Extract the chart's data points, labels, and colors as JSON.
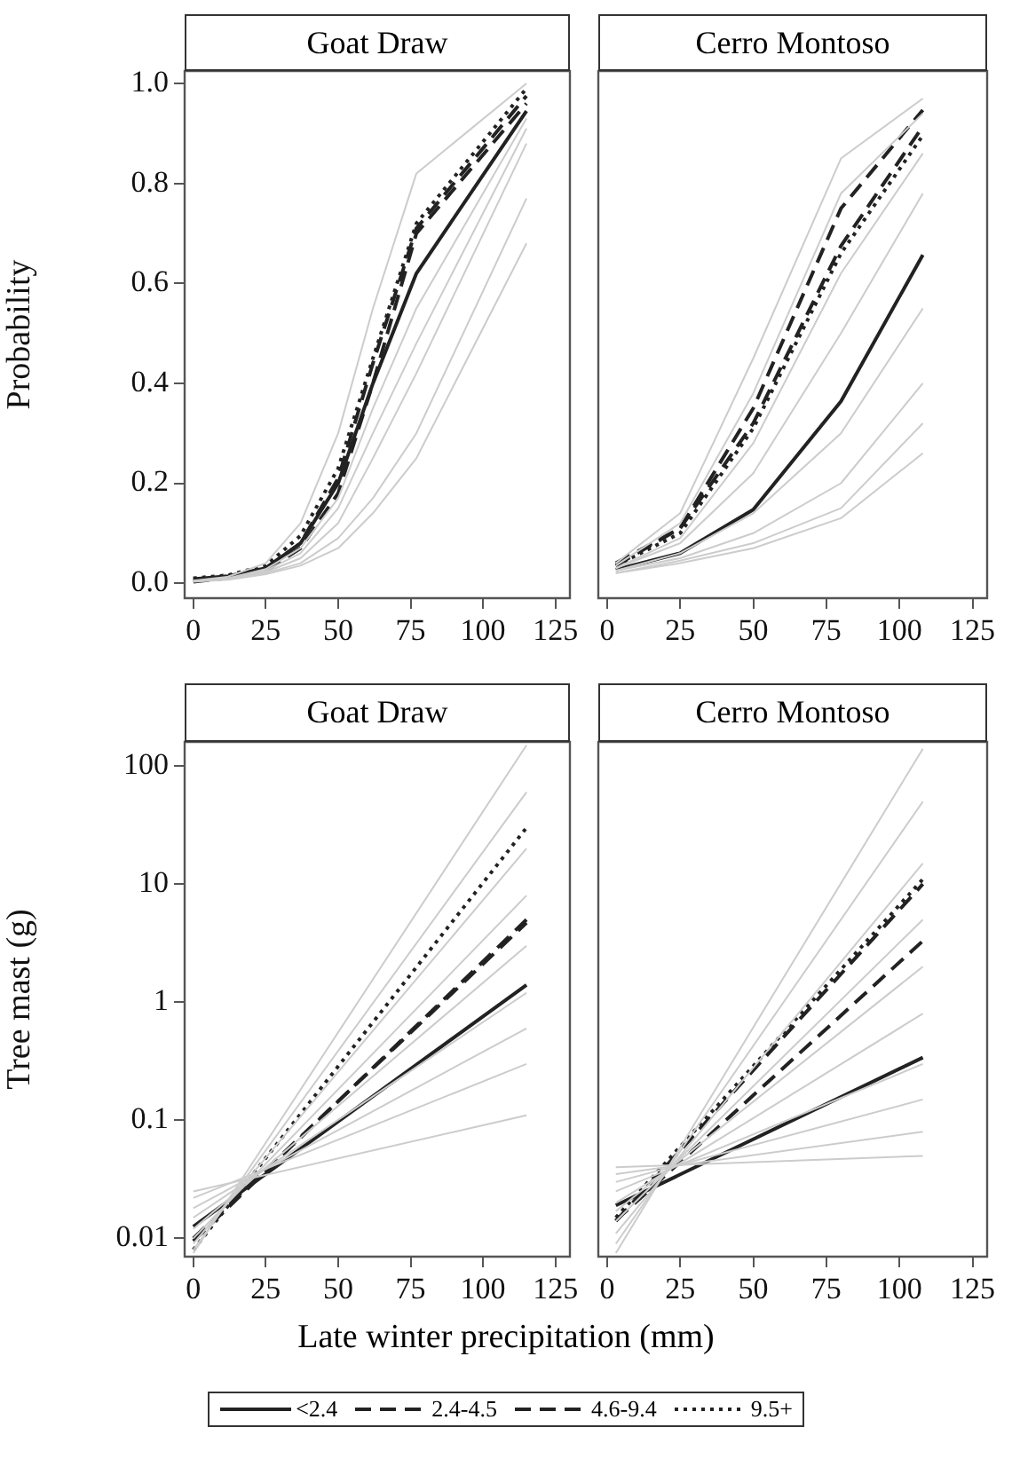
{
  "chart_data": [
    {
      "type": "line",
      "title": "Goat Draw",
      "ylabel": "Probability",
      "x": [
        0,
        12,
        25,
        37,
        50,
        62,
        77,
        115
      ],
      "xlim": [
        -3,
        130
      ],
      "xticks": [
        0,
        25,
        50,
        75,
        100,
        125
      ],
      "ylim": [
        -0.03,
        1.025
      ],
      "yticks": [
        {
          "value": 0,
          "label": "0.0"
        },
        0.2,
        0.4,
        0.6,
        0.8,
        {
          "value": 1,
          "label": "1.0"
        }
      ],
      "grid": false,
      "legend": false,
      "marker": "none",
      "series": [
        {
          "color": "#cccccc",
          "values": [
            0.005,
            0.013,
            0.04,
            0.12,
            0.3,
            0.55,
            0.82,
            1
          ]
        },
        {
          "color": "#cccccc",
          "values": [
            0.004,
            0.01,
            0.028,
            0.07,
            0.17,
            0.35,
            0.55,
            0.93
          ]
        },
        {
          "color": "#cccccc",
          "values": [
            0.004,
            0.009,
            0.022,
            0.05,
            0.12,
            0.25,
            0.42,
            0.88
          ]
        },
        {
          "color": "#cccccc",
          "values": [
            0.004,
            0.008,
            0.02,
            0.04,
            0.09,
            0.17,
            0.3,
            0.77
          ]
        },
        {
          "color": "#cccccc",
          "values": [
            0.003,
            0.007,
            0.018,
            0.035,
            0.07,
            0.14,
            0.25,
            0.68
          ]
        },
        {
          "color": "#cccccc",
          "values": [
            0.004,
            0.009,
            0.025,
            0.06,
            0.15,
            0.3,
            0.48,
            0.91
          ]
        },
        {
          "color": "#222222",
          "line_style": "solid",
          "values": [
            0.008,
            0.014,
            0.03,
            0.08,
            0.2,
            0.4,
            0.62,
            0.945
          ]
        },
        {
          "color": "#222222",
          "line_style": "dashed",
          "values": [
            0.003,
            0.01,
            0.025,
            0.07,
            0.18,
            0.4,
            0.7,
            0.96
          ]
        },
        {
          "color": "#222222",
          "line_style": "dashed",
          "values": [
            0.005,
            0.012,
            0.03,
            0.08,
            0.21,
            0.44,
            0.71,
            0.975
          ]
        },
        {
          "color": "#222222",
          "line_style": "dotted",
          "values": [
            0.01,
            0.016,
            0.035,
            0.095,
            0.23,
            0.45,
            0.72,
            0.99
          ]
        }
      ]
    },
    {
      "type": "line",
      "title": "Cerro Montoso",
      "x": [
        3,
        25,
        50,
        80,
        108
      ],
      "xlim": [
        -3,
        130
      ],
      "xticks": [
        0,
        25,
        50,
        75,
        100,
        125
      ],
      "ylim": [
        -0.03,
        1.025
      ],
      "yticks": [
        {
          "value": 0,
          "label": null
        },
        {
          "value": 0.2,
          "label": null
        },
        {
          "value": 0.4,
          "label": null
        },
        {
          "value": 0.6,
          "label": null
        },
        {
          "value": 0.8,
          "label": null
        },
        {
          "value": 1,
          "label": null
        }
      ],
      "tick_labels": "x",
      "grid": false,
      "legend": false,
      "marker": "none",
      "series": [
        {
          "color": "#cccccc",
          "values": [
            0.04,
            0.14,
            0.45,
            0.85,
            0.97
          ]
        },
        {
          "color": "#cccccc",
          "values": [
            0.035,
            0.12,
            0.38,
            0.78,
            0.94
          ]
        },
        {
          "color": "#cccccc",
          "values": [
            0.03,
            0.09,
            0.28,
            0.62,
            0.86
          ]
        },
        {
          "color": "#cccccc",
          "values": [
            0.03,
            0.08,
            0.22,
            0.5,
            0.78
          ]
        },
        {
          "color": "#cccccc",
          "values": [
            0.025,
            0.06,
            0.14,
            0.3,
            0.55
          ]
        },
        {
          "color": "#cccccc",
          "values": [
            0.025,
            0.05,
            0.1,
            0.2,
            0.4
          ]
        },
        {
          "color": "#cccccc",
          "values": [
            0.02,
            0.045,
            0.08,
            0.15,
            0.32
          ]
        },
        {
          "color": "#cccccc",
          "values": [
            0.02,
            0.04,
            0.07,
            0.13,
            0.26
          ]
        },
        {
          "color": "#222222",
          "line_style": "solid",
          "values": [
            0.027,
            0.06,
            0.147,
            0.364,
            0.657
          ]
        },
        {
          "color": "#222222",
          "line_style": "dashed",
          "values": [
            0.04,
            0.11,
            0.35,
            0.75,
            0.947
          ]
        },
        {
          "color": "#222222",
          "line_style": "dashed",
          "values": [
            0.035,
            0.11,
            0.32,
            0.675,
            0.914
          ]
        },
        {
          "color": "#222222",
          "line_style": "dotted",
          "values": [
            0.035,
            0.1,
            0.31,
            0.66,
            0.896
          ]
        }
      ]
    },
    {
      "type": "line",
      "title": "Goat Draw",
      "ylabel": "Tree mast (g)",
      "xlabel": "Late winter precipitation (mm)",
      "log": "y",
      "x": [
        0,
        115
      ],
      "xlim": [
        -3,
        130
      ],
      "xticks": [
        0,
        25,
        50,
        75,
        100,
        125
      ],
      "ylim": [
        0.007,
        160
      ],
      "yticks": [
        0.01,
        0.1,
        1,
        10,
        100
      ],
      "grid": false,
      "legend": false,
      "marker": "none",
      "series": [
        {
          "color": "#cccccc",
          "values": [
            0.025,
            0.11
          ]
        },
        {
          "color": "#cccccc",
          "values": [
            0.022,
            0.3
          ]
        },
        {
          "color": "#cccccc",
          "values": [
            0.018,
            0.6
          ]
        },
        {
          "color": "#cccccc",
          "values": [
            0.015,
            1.2
          ]
        },
        {
          "color": "#cccccc",
          "values": [
            0.012,
            3
          ]
        },
        {
          "color": "#cccccc",
          "values": [
            0.01,
            8
          ]
        },
        {
          "color": "#cccccc",
          "values": [
            0.009,
            20
          ]
        },
        {
          "color": "#cccccc",
          "values": [
            0.008,
            60
          ]
        },
        {
          "color": "#cccccc",
          "values": [
            0.0075,
            150
          ]
        },
        {
          "color": "#222222",
          "line_style": "solid",
          "values": [
            0.0126,
            1.4
          ]
        },
        {
          "color": "#222222",
          "line_style": "dashed",
          "values": [
            0.01,
            4.7
          ]
        },
        {
          "color": "#222222",
          "line_style": "dashed",
          "values": [
            0.0095,
            5
          ]
        },
        {
          "color": "#222222",
          "line_style": "dotted",
          "values": [
            0.008,
            30
          ]
        }
      ]
    },
    {
      "type": "line",
      "title": "Cerro Montoso",
      "log": "y",
      "x": [
        3,
        108
      ],
      "xlim": [
        -3,
        130
      ],
      "xticks": [
        0,
        25,
        50,
        75,
        100,
        125
      ],
      "ylim": [
        0.007,
        160
      ],
      "yticks": [
        {
          "value": 0.01,
          "label": null
        },
        {
          "value": 0.1,
          "label": null
        },
        {
          "value": 1,
          "label": null
        },
        {
          "value": 10,
          "label": null
        },
        {
          "value": 100,
          "label": null
        }
      ],
      "tick_labels": "x",
      "grid": false,
      "legend": "bottom",
      "marker": "none",
      "series": [
        {
          "color": "#cccccc",
          "values": [
            0.04,
            0.05
          ]
        },
        {
          "color": "#cccccc",
          "values": [
            0.035,
            0.08
          ]
        },
        {
          "color": "#cccccc",
          "values": [
            0.03,
            0.15
          ]
        },
        {
          "color": "#cccccc",
          "values": [
            0.025,
            0.3
          ]
        },
        {
          "color": "#cccccc",
          "values": [
            0.02,
            0.8
          ]
        },
        {
          "color": "#cccccc",
          "values": [
            0.017,
            2
          ]
        },
        {
          "color": "#cccccc",
          "values": [
            0.014,
            5
          ]
        },
        {
          "color": "#cccccc",
          "values": [
            0.011,
            15
          ]
        },
        {
          "color": "#cccccc",
          "values": [
            0.009,
            50
          ]
        },
        {
          "color": "#cccccc",
          "values": [
            0.0075,
            140
          ]
        },
        {
          "name": "<2.4",
          "color": "#222222",
          "line_style": "solid",
          "values": [
            0.019,
            0.34
          ]
        },
        {
          "name": "2.4-4.5",
          "color": "#222222",
          "line_style": "dashed",
          "values": [
            0.0142,
            3.3
          ]
        },
        {
          "name": "4.6-9.4",
          "color": "#222222",
          "line_style": "dashed",
          "values": [
            0.014,
            10
          ]
        },
        {
          "name": "9.5+",
          "color": "#222222",
          "line_style": "dotted",
          "values": [
            0.015,
            11
          ]
        }
      ]
    }
  ]
}
